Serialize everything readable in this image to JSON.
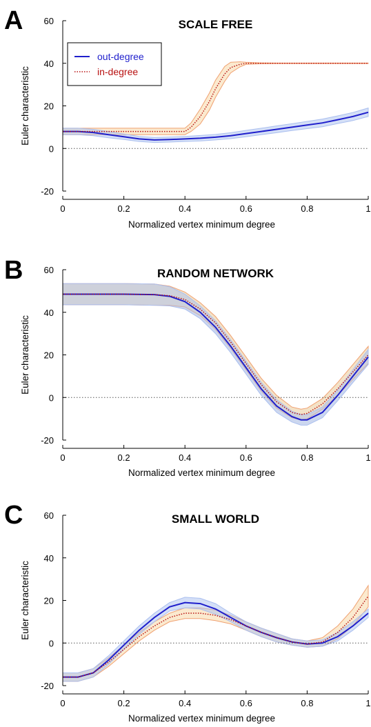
{
  "colors": {
    "out_line": "#1f1fcc",
    "out_band": "#aabfef",
    "in_line": "#b81010",
    "in_band": "#f7d9a8",
    "in_band_edge": "#f0a070",
    "random_shade": "#d9d9d9",
    "axis": "#000000",
    "zero_line": "#555555"
  },
  "legend": {
    "out_label": "out-degree",
    "in_label": "in-degree",
    "placement": "top-left (panel A)"
  },
  "chart_data": [
    {
      "type": "line",
      "panel_letter": "A",
      "title": "SCALE FREE",
      "xlabel": "Normalized vertex minimum degree",
      "ylabel": "Euler characteristic",
      "xlim": [
        0,
        1
      ],
      "ylim": [
        -20,
        60
      ],
      "xticks": [
        0,
        0.2,
        0.4,
        0.6,
        0.8,
        1
      ],
      "xtick_labels": [
        "0",
        "0.2",
        "0.4",
        "0.6",
        "0.8",
        "1"
      ],
      "yticks": [
        -20,
        0,
        20,
        40,
        60
      ],
      "ytick_labels": [
        "-20",
        "0",
        "20",
        "40",
        "60"
      ],
      "zero_line": true,
      "shade_between": false,
      "series": [
        {
          "name": "out-degree",
          "style": "solid",
          "x": [
            0,
            0.05,
            0.1,
            0.15,
            0.2,
            0.25,
            0.3,
            0.35,
            0.4,
            0.45,
            0.5,
            0.55,
            0.6,
            0.65,
            0.7,
            0.75,
            0.8,
            0.85,
            0.9,
            0.95,
            1
          ],
          "y": [
            8,
            8,
            7.5,
            6.5,
            5.5,
            4.5,
            4,
            4.2,
            4.5,
            4.8,
            5.3,
            6,
            7,
            8,
            9,
            10,
            11,
            12,
            13.5,
            15,
            17
          ],
          "band": [
            1.5,
            1.5,
            1.5,
            1.5,
            1.3,
            1.2,
            1.2,
            1.2,
            1.2,
            1.3,
            1.3,
            1.4,
            1.5,
            1.5,
            1.6,
            1.6,
            1.7,
            1.8,
            1.8,
            1.9,
            2
          ]
        },
        {
          "name": "in-degree",
          "style": "dotted",
          "x": [
            0,
            0.05,
            0.1,
            0.15,
            0.2,
            0.25,
            0.3,
            0.35,
            0.4,
            0.42,
            0.45,
            0.48,
            0.5,
            0.53,
            0.55,
            0.58,
            0.6,
            0.65,
            0.7,
            0.8,
            0.9,
            1
          ],
          "y": [
            8,
            8,
            8,
            8,
            8,
            8,
            8,
            8,
            8,
            10,
            15,
            22,
            28,
            35,
            38,
            39.5,
            40,
            40,
            40,
            40,
            40,
            40
          ],
          "band": [
            1.5,
            1.5,
            1.5,
            1.5,
            1.5,
            1.5,
            1.5,
            1.5,
            1.5,
            2,
            3.5,
            4,
            4,
            3.5,
            2.5,
            1.2,
            0.5,
            0.2,
            0.1,
            0.1,
            0.1,
            0.1
          ]
        }
      ]
    },
    {
      "type": "line",
      "panel_letter": "B",
      "title": "RANDOM NETWORK",
      "xlabel": "Normalized vertex minimum degree",
      "ylabel": "Euler characteristic",
      "xlim": [
        0,
        1
      ],
      "ylim": [
        -20,
        60
      ],
      "xticks": [
        0,
        0.2,
        0.4,
        0.6,
        0.8,
        1
      ],
      "xtick_labels": [
        "0",
        "0.2",
        "0.4",
        "0.6",
        "0.8",
        "1"
      ],
      "yticks": [
        -20,
        0,
        20,
        40,
        60
      ],
      "ytick_labels": [
        "-20",
        "0",
        "20",
        "40",
        "60"
      ],
      "zero_line": true,
      "shade_between": true,
      "series": [
        {
          "name": "out-degree",
          "style": "solid",
          "x": [
            0,
            0.1,
            0.2,
            0.3,
            0.35,
            0.4,
            0.45,
            0.5,
            0.55,
            0.6,
            0.65,
            0.7,
            0.75,
            0.78,
            0.8,
            0.85,
            0.9,
            0.95,
            1
          ],
          "y": [
            48.5,
            48.5,
            48.5,
            48.3,
            47.5,
            45,
            40,
            33,
            24,
            14,
            4,
            -4,
            -9,
            -10.5,
            -10.5,
            -7,
            1,
            10,
            19
          ],
          "band": [
            5,
            5,
            5,
            5,
            4.5,
            3.5,
            3,
            3,
            3,
            3,
            3,
            3,
            2.5,
            2.5,
            2.5,
            2.5,
            2.5,
            3,
            3.5
          ]
        },
        {
          "name": "in-degree",
          "style": "dotted",
          "x": [
            0,
            0.1,
            0.2,
            0.3,
            0.35,
            0.4,
            0.45,
            0.5,
            0.55,
            0.6,
            0.65,
            0.7,
            0.75,
            0.78,
            0.8,
            0.85,
            0.9,
            0.95,
            1
          ],
          "y": [
            48.5,
            48.5,
            48.5,
            48.3,
            47.8,
            46,
            41.5,
            35,
            26,
            16,
            6,
            -2,
            -7,
            -8,
            -7.5,
            -3,
            4,
            12,
            20
          ],
          "band": [
            5,
            5,
            5,
            5,
            4.5,
            3.5,
            3,
            3,
            3,
            3,
            3,
            3,
            2.5,
            2.5,
            2.5,
            2.5,
            3,
            3.5,
            4
          ]
        }
      ]
    },
    {
      "type": "line",
      "panel_letter": "C",
      "title": "SMALL WORLD",
      "xlabel": "Normalized vertex minimum degree",
      "ylabel": "Euler characteristic",
      "xlim": [
        0,
        1
      ],
      "ylim": [
        -20,
        60
      ],
      "xticks": [
        0,
        0.2,
        0.4,
        0.6,
        0.8,
        1
      ],
      "xtick_labels": [
        "0",
        "0.2",
        "0.4",
        "0.6",
        "0.8",
        "1"
      ],
      "yticks": [
        -20,
        0,
        20,
        40,
        60
      ],
      "ytick_labels": [
        "-20",
        "0",
        "20",
        "40",
        "60"
      ],
      "zero_line": true,
      "shade_between": false,
      "series": [
        {
          "name": "out-degree",
          "style": "solid",
          "x": [
            0,
            0.05,
            0.1,
            0.15,
            0.2,
            0.25,
            0.3,
            0.35,
            0.4,
            0.45,
            0.5,
            0.55,
            0.6,
            0.65,
            0.7,
            0.75,
            0.8,
            0.85,
            0.9,
            0.95,
            1
          ],
          "y": [
            -16,
            -16,
            -14,
            -8,
            -1,
            6,
            12,
            17,
            19,
            18.5,
            16,
            12,
            8,
            5,
            2.5,
            0.5,
            -0.5,
            0,
            3,
            8,
            14
          ],
          "band": [
            2,
            2,
            2,
            2,
            2,
            2,
            2,
            2,
            2.5,
            2.5,
            2.5,
            2,
            2,
            2,
            2,
            1.5,
            1.5,
            1.5,
            2,
            2,
            2
          ]
        },
        {
          "name": "in-degree",
          "style": "dotted",
          "x": [
            0,
            0.05,
            0.1,
            0.15,
            0.2,
            0.25,
            0.3,
            0.35,
            0.4,
            0.45,
            0.5,
            0.55,
            0.6,
            0.65,
            0.7,
            0.75,
            0.8,
            0.85,
            0.9,
            0.95,
            1
          ],
          "y": [
            -16,
            -16,
            -14,
            -9,
            -3,
            3,
            8,
            12,
            14,
            14,
            13,
            11,
            8,
            5,
            2.5,
            0.5,
            -0.5,
            0.5,
            5,
            12,
            22
          ],
          "band": [
            2,
            2,
            2,
            2,
            2,
            2,
            2,
            2,
            2.5,
            2.5,
            2.5,
            2,
            2,
            2,
            2,
            1.5,
            1.5,
            2,
            3,
            4,
            5
          ]
        }
      ]
    }
  ]
}
